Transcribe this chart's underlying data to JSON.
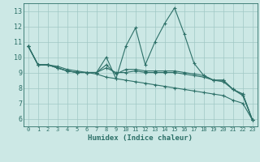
{
  "xlabel": "Humidex (Indice chaleur)",
  "xlim": [
    -0.5,
    23.5
  ],
  "ylim": [
    5.5,
    13.5
  ],
  "yticks": [
    6,
    7,
    8,
    9,
    10,
    11,
    12,
    13
  ],
  "xticks": [
    0,
    1,
    2,
    3,
    4,
    5,
    6,
    7,
    8,
    9,
    10,
    11,
    12,
    13,
    14,
    15,
    16,
    17,
    18,
    19,
    20,
    21,
    22,
    23
  ],
  "background_color": "#cce8e5",
  "grid_color": "#a0c8c4",
  "line_color": "#2d7068",
  "series": [
    [
      10.7,
      9.5,
      9.5,
      9.3,
      9.1,
      9.0,
      9.0,
      9.0,
      10.0,
      8.6,
      10.7,
      11.9,
      9.5,
      11.0,
      12.2,
      13.2,
      11.5,
      9.6,
      8.8,
      8.5,
      8.5,
      7.9,
      7.6,
      5.9
    ],
    [
      10.7,
      9.5,
      9.5,
      9.3,
      9.1,
      9.0,
      9.0,
      9.0,
      9.5,
      8.9,
      9.2,
      9.2,
      9.1,
      9.1,
      9.1,
      9.1,
      9.0,
      8.9,
      8.8,
      8.5,
      8.5,
      7.9,
      7.6,
      5.9
    ],
    [
      10.7,
      9.5,
      9.5,
      9.3,
      9.1,
      9.0,
      9.0,
      9.0,
      9.3,
      9.0,
      9.0,
      9.1,
      9.0,
      9.0,
      9.0,
      9.0,
      8.9,
      8.8,
      8.7,
      8.5,
      8.4,
      7.9,
      7.5,
      5.9
    ],
    [
      10.7,
      9.5,
      9.5,
      9.4,
      9.2,
      9.1,
      9.0,
      8.9,
      8.7,
      8.6,
      8.5,
      8.4,
      8.3,
      8.2,
      8.1,
      8.0,
      7.9,
      7.8,
      7.7,
      7.6,
      7.5,
      7.2,
      7.0,
      5.9
    ]
  ]
}
